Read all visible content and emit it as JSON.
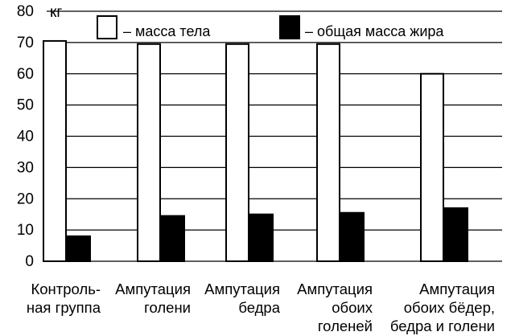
{
  "chart_data": {
    "type": "bar",
    "unit_label": "кг",
    "categories": [
      [
        "Контроль-",
        "ная группа"
      ],
      [
        "Ампутация",
        "голени"
      ],
      [
        "Ампутация",
        "бедра"
      ],
      [
        "Ампутация",
        "обоих",
        "голеней"
      ],
      [
        "Ампутация",
        "обоих бёдер,",
        "бедра и голени"
      ]
    ],
    "series": [
      {
        "name": "– масса тела",
        "color": "#ffffff",
        "values": [
          70.5,
          69.5,
          69.5,
          69.5,
          60
        ]
      },
      {
        "name": "– общая масса жира",
        "color": "#000000",
        "values": [
          8,
          14.5,
          15,
          15.5,
          17
        ]
      }
    ],
    "y_ticks": [
      "0",
      "10",
      "20",
      "30",
      "40",
      "50",
      "60",
      "70",
      "80"
    ],
    "ylim": [
      0,
      80
    ],
    "grid": true,
    "legend_position": "top"
  }
}
